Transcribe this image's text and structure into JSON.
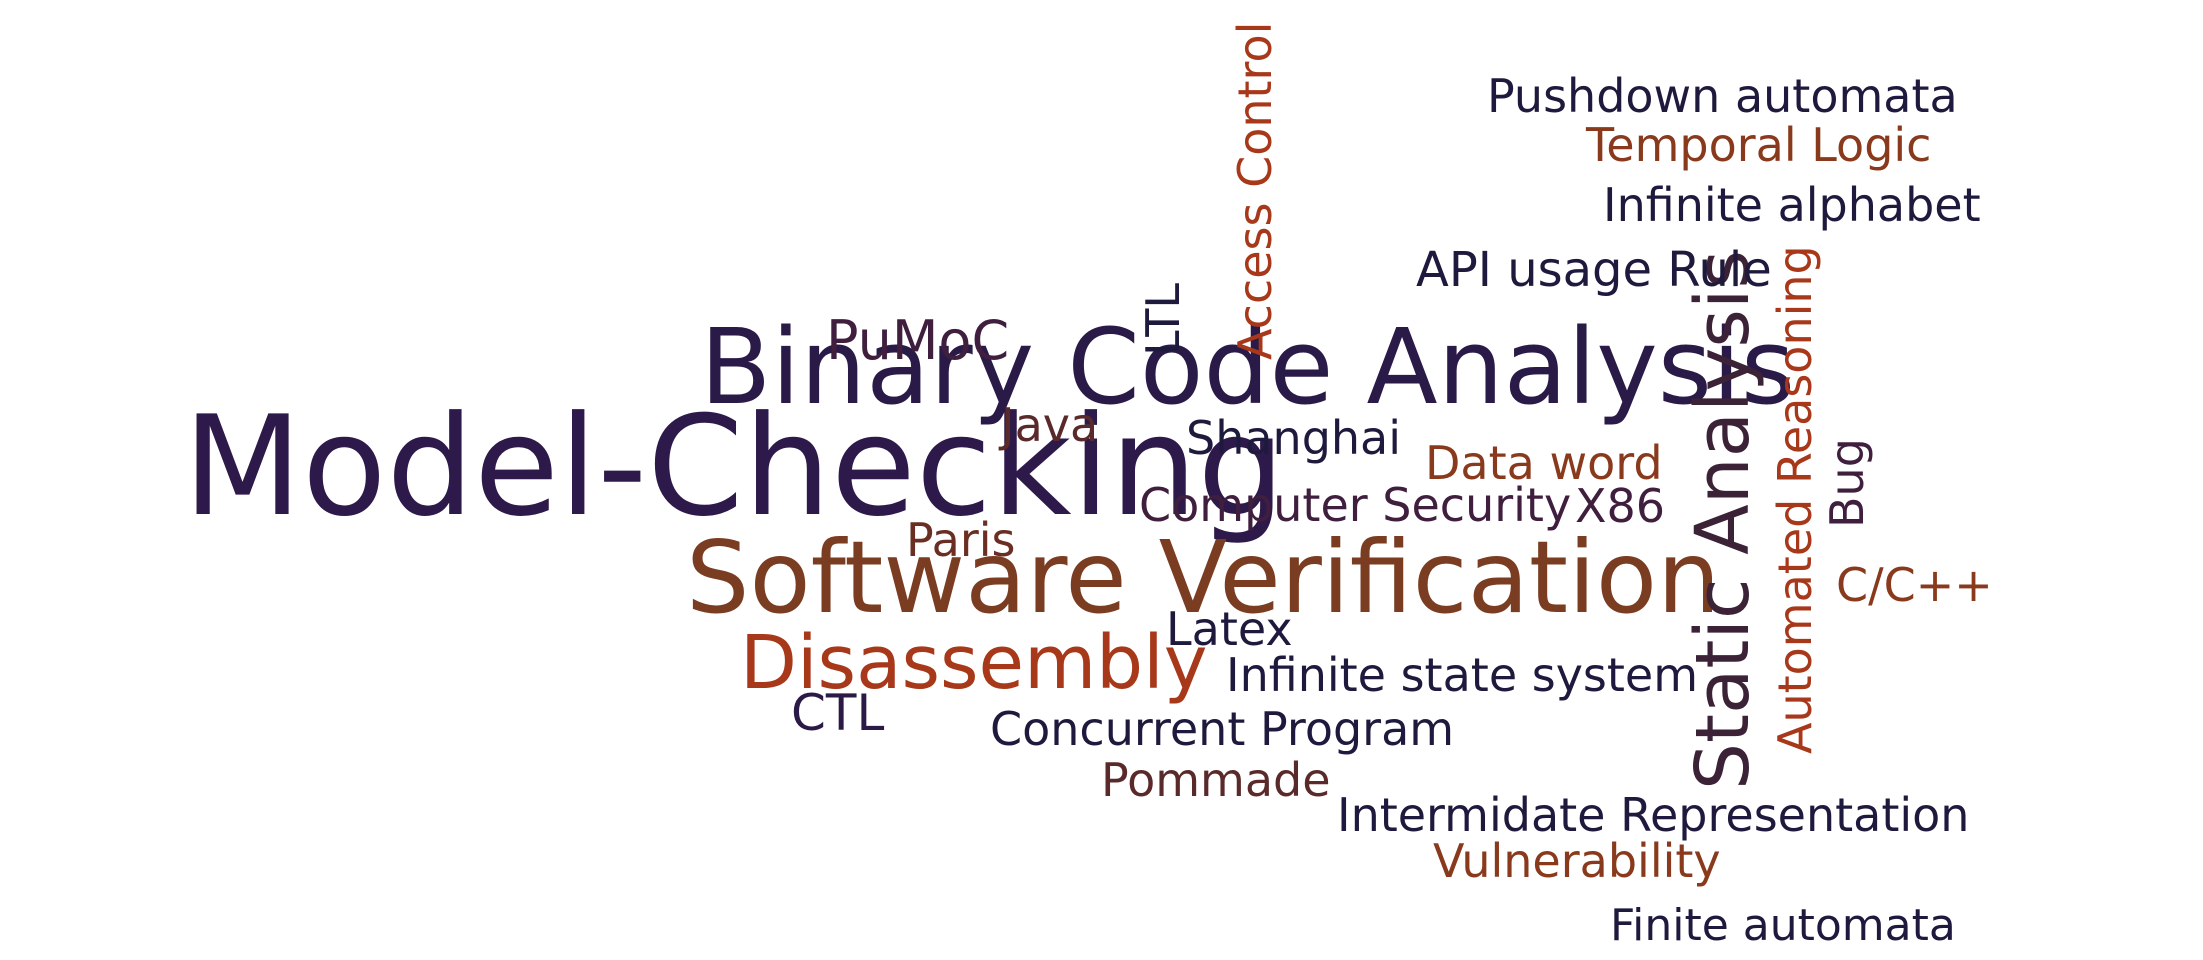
{
  "colors": {
    "purple": "#2b1a45",
    "navy": "#1e1a3d",
    "brown": "#7a3b22",
    "rust": "#a8381a",
    "plum": "#3f1e3e"
  },
  "words": [
    {
      "id": "model-checking",
      "text": "Model-Checking",
      "color": "#2e1a4a"
    },
    {
      "id": "binary-code-analysis",
      "text": "Binary Code Analysis",
      "color": "#2a1a48"
    },
    {
      "id": "software-verification",
      "text": "Software Verification",
      "color": "#7a3d22"
    },
    {
      "id": "static-analysis",
      "text": "Static Analysis",
      "color": "#3c2236"
    },
    {
      "id": "disassembly",
      "text": "Disassembly",
      "color": "#a8381a"
    },
    {
      "id": "automated-reasoning",
      "text": "Automated Reasoning",
      "color": "#a8381a"
    },
    {
      "id": "access-control",
      "text": "Access Control",
      "color": "#a8381a"
    },
    {
      "id": "pushdown-automata",
      "text": "Pushdown automata",
      "color": "#1e1a3d"
    },
    {
      "id": "temporal-logic",
      "text": "Temporal Logic",
      "color": "#8a3a1c"
    },
    {
      "id": "infinite-alphabet",
      "text": "Infinite alphabet",
      "color": "#1e1a3d"
    },
    {
      "id": "api-usage-rule",
      "text": "API usage Rule",
      "color": "#1e1a3d"
    },
    {
      "id": "ltl",
      "text": "LTL",
      "color": "#1e1a3d"
    },
    {
      "id": "pumoc",
      "text": "PuMoC",
      "color": "#3f1e3e"
    },
    {
      "id": "java",
      "text": "Java",
      "color": "#5a2a2a"
    },
    {
      "id": "shanghai",
      "text": "Shanghai",
      "color": "#1e1a3d"
    },
    {
      "id": "data-word",
      "text": "Data word",
      "color": "#8a3a1c"
    },
    {
      "id": "bug",
      "text": "Bug",
      "color": "#3f1e3e"
    },
    {
      "id": "computer-security",
      "text": "Computer Security",
      "color": "#3f1e3e"
    },
    {
      "id": "x86",
      "text": "X86",
      "color": "#3f1e3e"
    },
    {
      "id": "paris",
      "text": "Paris",
      "color": "#6a2e22"
    },
    {
      "id": "c-cpp",
      "text": "C/C++",
      "color": "#8a3a1c"
    },
    {
      "id": "latex",
      "text": "Latex",
      "color": "#1e1a3d"
    },
    {
      "id": "infinite-state-system",
      "text": "Infinite state system",
      "color": "#1e1a3d"
    },
    {
      "id": "ctl",
      "text": "CTL",
      "color": "#2b1a45"
    },
    {
      "id": "concurrent-program",
      "text": "Concurrent Program",
      "color": "#1e1a3d"
    },
    {
      "id": "pommade",
      "text": "Pommade",
      "color": "#5a2a2a"
    },
    {
      "id": "intermidate-representation",
      "text": "Intermidate Representation",
      "color": "#1e1a3d"
    },
    {
      "id": "vulnerability",
      "text": "Vulnerability",
      "color": "#8a3a1c"
    },
    {
      "id": "finite-automata",
      "text": "Finite automata",
      "color": "#1e1a3d"
    }
  ]
}
